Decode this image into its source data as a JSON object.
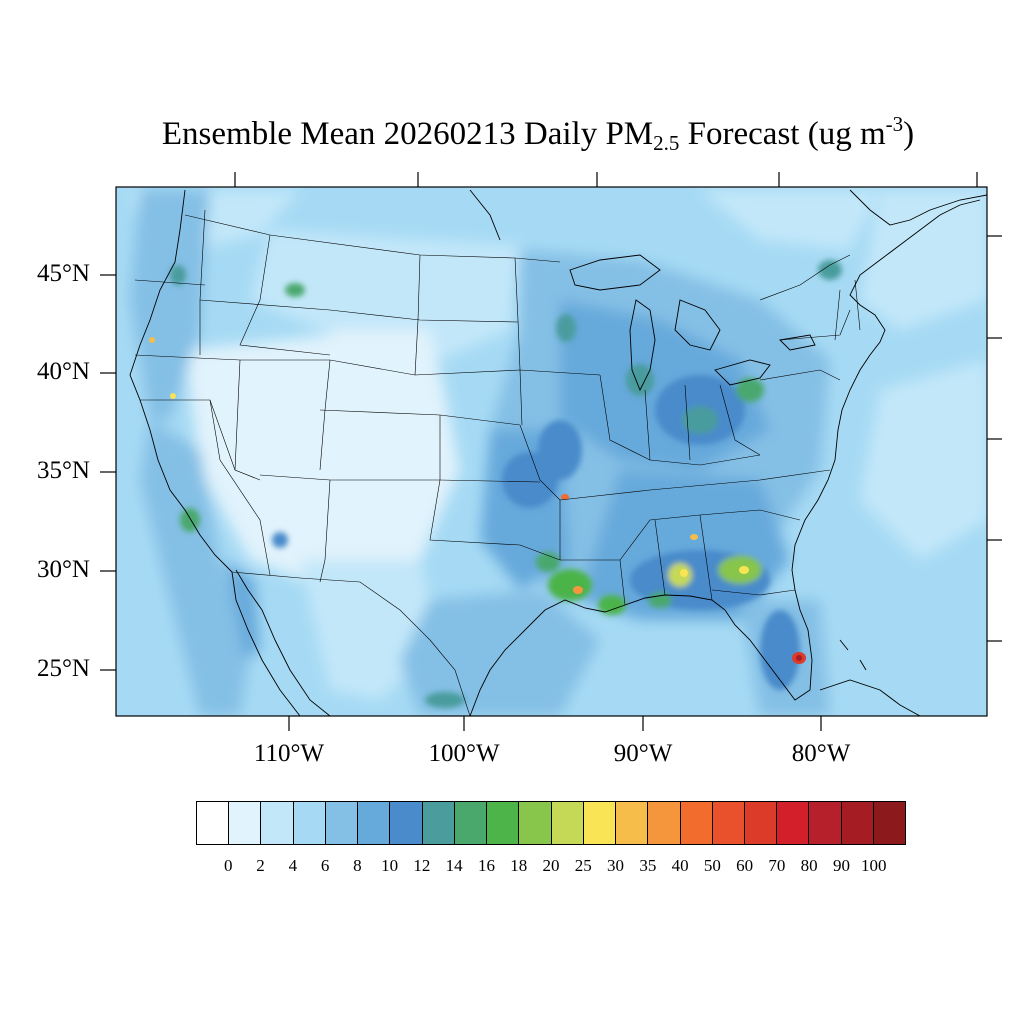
{
  "title": {
    "prefix": "Ensemble Mean 20260213 Daily PM",
    "subscript": "2.5",
    "middle": " Forecast (ug m",
    "superscript": "-3",
    "suffix": ")"
  },
  "map": {
    "projection": "lambert-conformal",
    "region": "Contiguous United States",
    "variable": "PM2.5",
    "units": "ug m-3",
    "lat_labels": [
      "45°N",
      "40°N",
      "35°N",
      "30°N",
      "25°N"
    ],
    "lon_labels": [
      "110°W",
      "100°W",
      "90°W",
      "80°W"
    ],
    "hotspots": [
      {
        "area": "South Florida",
        "level": "red"
      },
      {
        "area": "Louisiana / Texas Gulf coast",
        "level": "orange"
      },
      {
        "area": "Georgia / Alabama",
        "level": "yellow"
      },
      {
        "area": "Ohio Valley / Indiana",
        "level": "green-yellow"
      },
      {
        "area": "Missouri / Arkansas",
        "level": "green"
      },
      {
        "area": "Southern California",
        "level": "green"
      },
      {
        "area": "Pacific Northwest",
        "level": "green"
      }
    ]
  },
  "colorbar": {
    "ticks": [
      "0",
      "2",
      "4",
      "6",
      "8",
      "10",
      "12",
      "14",
      "16",
      "18",
      "20",
      "25",
      "30",
      "35",
      "40",
      "50",
      "60",
      "70",
      "80",
      "90",
      "100"
    ],
    "colors": [
      "#ffffff",
      "#e1f3fc",
      "#c2e7f9",
      "#a6daf4",
      "#84bfe5",
      "#66a9db",
      "#4a8bcb",
      "#4a9c9d",
      "#4aa86d",
      "#4cb448",
      "#87c54b",
      "#c6d957",
      "#f8e455",
      "#f7bd4a",
      "#f5963d",
      "#f26c2e",
      "#e9512c",
      "#dc3b2a",
      "#d31f29",
      "#b5202a",
      "#a51c22",
      "#8c1a1c"
    ]
  }
}
